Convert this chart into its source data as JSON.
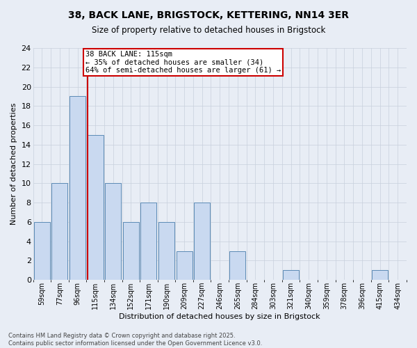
{
  "title_line1": "38, BACK LANE, BRIGSTOCK, KETTERING, NN14 3ER",
  "title_line2": "Size of property relative to detached houses in Brigstock",
  "xlabel": "Distribution of detached houses by size in Brigstock",
  "ylabel": "Number of detached properties",
  "categories": [
    "59sqm",
    "77sqm",
    "96sqm",
    "115sqm",
    "134sqm",
    "152sqm",
    "171sqm",
    "190sqm",
    "209sqm",
    "227sqm",
    "246sqm",
    "265sqm",
    "284sqm",
    "303sqm",
    "321sqm",
    "340sqm",
    "359sqm",
    "378sqm",
    "396sqm",
    "415sqm",
    "434sqm"
  ],
  "values": [
    6,
    10,
    19,
    15,
    10,
    6,
    8,
    6,
    3,
    8,
    0,
    3,
    0,
    0,
    1,
    0,
    0,
    0,
    0,
    1,
    0
  ],
  "bar_color": "#c9d9f0",
  "bar_edge_color": "#5b8ab5",
  "marker_index": 3,
  "marker_color": "#cc0000",
  "annotation_line1": "38 BACK LANE: 115sqm",
  "annotation_line2": "← 35% of detached houses are smaller (34)",
  "annotation_line3": "64% of semi-detached houses are larger (61) →",
  "ylim": [
    0,
    24
  ],
  "yticks": [
    0,
    2,
    4,
    6,
    8,
    10,
    12,
    14,
    16,
    18,
    20,
    22,
    24
  ],
  "grid_color": "#c8d0dc",
  "bg_color": "#e8edf5",
  "footer_line1": "Contains HM Land Registry data © Crown copyright and database right 2025.",
  "footer_line2": "Contains public sector information licensed under the Open Government Licence v3.0."
}
